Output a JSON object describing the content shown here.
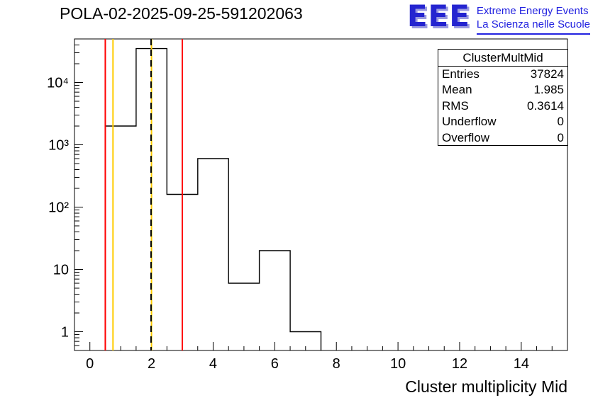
{
  "header": {
    "title": "POLA-02-2025-09-25-591202063",
    "logo": {
      "text": "EEE",
      "line1": "Extreme Energy Events",
      "line2": "La Scienza nelle Scuole",
      "color": "#2222e0"
    }
  },
  "stats": {
    "title": "ClusterMultMid",
    "rows": [
      {
        "label": "Entries",
        "value": "37824"
      },
      {
        "label": "Mean",
        "value": "1.985"
      },
      {
        "label": "RMS",
        "value": "0.3614"
      },
      {
        "label": "Underflow",
        "value": "0"
      },
      {
        "label": "Overflow",
        "value": "0"
      }
    ]
  },
  "chart_data": {
    "type": "bar",
    "subtype": "step-histogram",
    "title": "POLA-02-2025-09-25-591202063",
    "xlabel": "Cluster multiplicity Mid",
    "ylabel": "",
    "y_scale": "log",
    "grid": false,
    "x_range": [
      -0.5,
      15.5
    ],
    "y_range_log": [
      0.5,
      50000
    ],
    "bin_edges": [
      0.5,
      1.5,
      2.5,
      3.5,
      4.5,
      5.5,
      6.5,
      7.5
    ],
    "bin_centers": [
      1,
      2,
      3,
      4,
      5,
      6,
      7
    ],
    "counts": [
      2000,
      35000,
      160,
      600,
      6,
      20,
      1
    ],
    "x_ticks_major": [
      0,
      2,
      4,
      6,
      8,
      10,
      12,
      14
    ],
    "x_minor_step": 0.5,
    "y_ticks_major": [
      1,
      10,
      100,
      1000,
      10000
    ],
    "y_tick_labels": [
      "1",
      "10",
      "10²",
      "10³",
      "10⁴"
    ],
    "line_color": "#000000",
    "marker_lines": [
      {
        "name": "red-threshold-low",
        "x": 0.5,
        "color": "#ff0000",
        "style": "solid"
      },
      {
        "name": "yellow-threshold-low",
        "x": 0.75,
        "color": "#ffcc00",
        "style": "solid"
      },
      {
        "name": "yellow-threshold-high",
        "x": 2.0,
        "color": "#ffcc00",
        "style": "solid"
      },
      {
        "name": "red-threshold-high",
        "x": 3.0,
        "color": "#ff0000",
        "style": "solid"
      },
      {
        "name": "mean-line",
        "x": 1.985,
        "color": "#000000",
        "style": "dashed"
      }
    ]
  }
}
